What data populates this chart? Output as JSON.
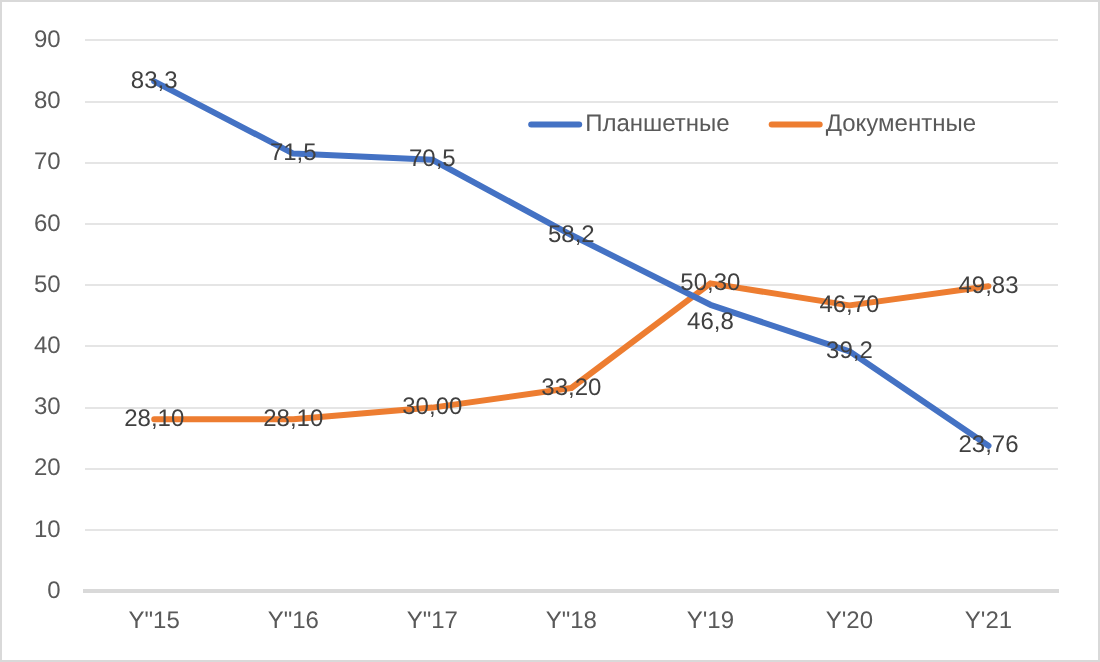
{
  "chart_data": {
    "type": "line",
    "categories": [
      "Y\"15",
      "Y\"16",
      "Y\"17",
      "Y\"18",
      "Y'19",
      "Y'20",
      "Y'21"
    ],
    "series": [
      {
        "name": "Планшетные",
        "color": "#4472c4",
        "values": [
          83.3,
          71.5,
          70.5,
          58.2,
          46.8,
          39.2,
          23.76
        ],
        "value_labels": [
          "83,3",
          "71,5",
          "70,5",
          "58,2",
          "46,8",
          "39,2",
          "23,76"
        ]
      },
      {
        "name": "Документные",
        "color": "#ed7d31",
        "values": [
          28.1,
          28.1,
          30.0,
          33.2,
          50.3,
          46.7,
          49.83
        ],
        "value_labels": [
          "28,10",
          "28,10",
          "30,00",
          "33,20",
          "50,30",
          "46,70",
          "49,83"
        ]
      }
    ],
    "ylim": [
      0,
      90
    ],
    "yticks": [
      0,
      10,
      20,
      30,
      40,
      50,
      60,
      70,
      80,
      90
    ],
    "grid": "y",
    "legend": "top right",
    "marker": "none",
    "line_style": "solid"
  }
}
